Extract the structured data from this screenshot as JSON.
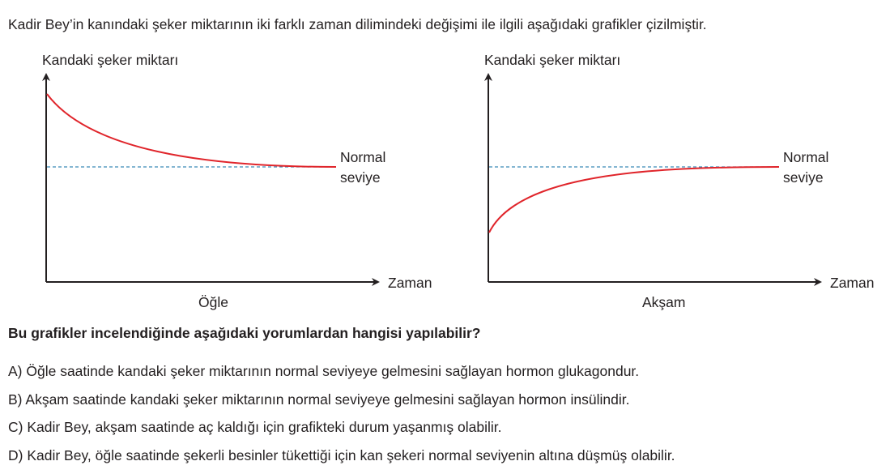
{
  "intro": "Kadir Bey’in kanındaki şeker miktarının iki farklı zaman dilimindeki değişimi ile ilgili aşağıdaki grafikler çizilmiştir.",
  "graphs": [
    {
      "y_label": "Kandaki şeker miktarı",
      "x_label": "Zaman",
      "caption": "Öğle",
      "ref_line_label_1": "Normal",
      "ref_line_label_2": "seviye",
      "trend": "decreasing to normal"
    },
    {
      "y_label": "Kandaki şeker miktarı",
      "x_label": "Zaman",
      "caption": "Akşam",
      "ref_line_label_1": "Normal",
      "ref_line_label_2": "seviye",
      "trend": "increasing to normal"
    }
  ],
  "colors": {
    "curve": "#e0252b",
    "reference_line": "#3a8ab8",
    "axis": "#231f20"
  },
  "question": "Bu grafikler incelendiğinde aşağıdaki yorumlardan hangisi yapılabilir?",
  "options": [
    "A) Öğle saatinde kandaki şeker miktarının normal seviyeye gelmesini sağlayan hormon glukagondur.",
    "B) Akşam saatinde kandaki şeker miktarının normal seviyeye gelmesini sağlayan hormon insülindir.",
    "C) Kadir Bey, akşam saatinde aç kaldığı için grafikteki durum yaşanmış olabilir.",
    "D) Kadir Bey, öğle saatinde şekerli besinler tükettiği için kan şekeri normal seviyenin altına düşmüş olabilir."
  ]
}
